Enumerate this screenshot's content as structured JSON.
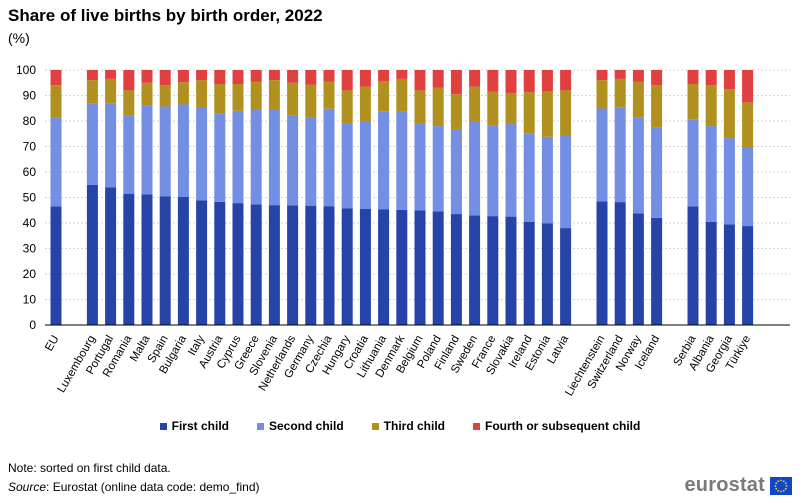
{
  "chart_data": {
    "type": "bar",
    "stacked": true,
    "title": "Share of live births by birth order, 2022",
    "unit_label": "(%)",
    "ylim": [
      0,
      100
    ],
    "yticks": [
      0,
      10,
      20,
      30,
      40,
      50,
      60,
      70,
      80,
      90,
      100
    ],
    "grid": true,
    "legend_position": "bottom",
    "groups": [
      [
        "EU"
      ],
      [
        "Luxembourg",
        "Portugal",
        "Romania",
        "Malta",
        "Spain",
        "Bulgaria",
        "Italy",
        "Austria",
        "Cyprus",
        "Greece",
        "Slovenia",
        "Netherlands",
        "Germany",
        "Czechia",
        "Hungary",
        "Croatia",
        "Lithuania",
        "Denmark",
        "Belgium",
        "Poland",
        "Finland",
        "Sweden",
        "France",
        "Slovakia",
        "Ireland",
        "Estonia",
        "Latvia"
      ],
      [
        "Liechtenstein",
        "Switzerland",
        "Norway",
        "Iceland"
      ],
      [
        "Serbia",
        "Albania",
        "Georgia",
        "Türkiye"
      ]
    ],
    "categories": [
      "EU",
      "Luxembourg",
      "Portugal",
      "Romania",
      "Malta",
      "Spain",
      "Bulgaria",
      "Italy",
      "Austria",
      "Cyprus",
      "Greece",
      "Slovenia",
      "Netherlands",
      "Germany",
      "Czechia",
      "Hungary",
      "Croatia",
      "Lithuania",
      "Denmark",
      "Belgium",
      "Poland",
      "Finland",
      "Sweden",
      "France",
      "Slovakia",
      "Ireland",
      "Estonia",
      "Latvia",
      "Liechtenstein",
      "Switzerland",
      "Norway",
      "Iceland",
      "Serbia",
      "Albania",
      "Georgia",
      "Türkiye"
    ],
    "series": [
      {
        "name": "First child",
        "color": "#2644a7",
        "values": [
          46.5,
          55,
          54,
          51.5,
          51.2,
          50.5,
          50.2,
          48.9,
          48.3,
          47.8,
          47.3,
          47,
          46.9,
          46.8,
          46.6,
          45.8,
          45.5,
          45.3,
          45.2,
          44.9,
          44.5,
          43.5,
          43,
          42.7,
          42.5,
          40.5,
          39.8,
          38,
          48.5,
          48.2,
          43.8,
          42,
          46.5,
          40.5,
          39.5,
          38.8
        ]
      },
      {
        "name": "Second child",
        "color": "#738ee2",
        "values": [
          35,
          32,
          33,
          30.5,
          34.8,
          35.2,
          36.3,
          36.6,
          34.7,
          36.2,
          37.2,
          37.7,
          35.4,
          34.8,
          38.2,
          33.2,
          34.5,
          38.5,
          38.7,
          34.1,
          33.5,
          33,
          37,
          35.6,
          36.3,
          34.5,
          34,
          36.5,
          36.4,
          37,
          37.5,
          35.5,
          34.2,
          37.5,
          33.8,
          31
        ]
      },
      {
        "name": "Third child",
        "color": "#b09120",
        "values": [
          12.5,
          9,
          9.5,
          10,
          9,
          8.3,
          8.7,
          10.5,
          11.5,
          10.5,
          11,
          11.3,
          12.7,
          12.7,
          10.7,
          13,
          13.5,
          11.9,
          12.6,
          13,
          15,
          14,
          13.5,
          13.2,
          12.2,
          16.3,
          17.8,
          17.5,
          11.1,
          11.3,
          14.2,
          16.5,
          13.8,
          16,
          19.2,
          17.5
        ]
      },
      {
        "name": "Fourth or subsequent child",
        "color": "#e04040",
        "values": [
          6,
          4,
          3.5,
          8,
          5,
          6,
          4.8,
          4,
          5.5,
          5.5,
          4.5,
          4,
          5,
          5.7,
          4.5,
          8,
          6.5,
          4.3,
          3.5,
          8,
          7,
          9.5,
          6.5,
          8.5,
          9,
          8.7,
          8.4,
          8,
          4,
          3.5,
          4.5,
          6,
          5.5,
          6,
          7.5,
          12.7
        ]
      }
    ]
  },
  "footer": {
    "note": "Note: sorted on first child data.",
    "source_label": "Source",
    "source_text": ": Eurostat (online data code: demo_find)",
    "brand": "eurostat"
  },
  "colors": {
    "brand_blue": "#0e47cb",
    "eu_stars": "#ffd617"
  }
}
